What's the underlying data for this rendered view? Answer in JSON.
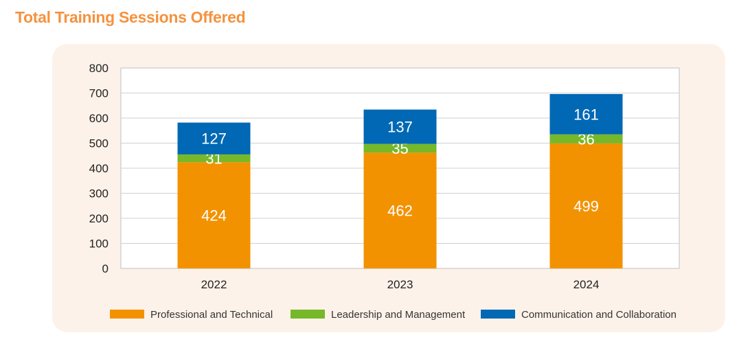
{
  "chart_data": {
    "type": "bar",
    "stacked": true,
    "title": "Total Training Sessions Offered",
    "xlabel": "",
    "ylabel": "",
    "categories": [
      "2022",
      "2023",
      "2024"
    ],
    "series": [
      {
        "name": "Professional and Technical",
        "values": [
          424,
          462,
          499
        ],
        "color": "#F39200"
      },
      {
        "name": "Leadership and Management",
        "values": [
          31,
          35,
          36
        ],
        "color": "#76B82A"
      },
      {
        "name": "Communication and Collaboration",
        "values": [
          127,
          137,
          161
        ],
        "color": "#0068B4"
      }
    ],
    "ylim": [
      0,
      800
    ],
    "yticks": [
      0,
      100,
      200,
      300,
      400,
      500,
      600,
      700,
      800
    ],
    "grid": true,
    "legend_position": "bottom"
  }
}
